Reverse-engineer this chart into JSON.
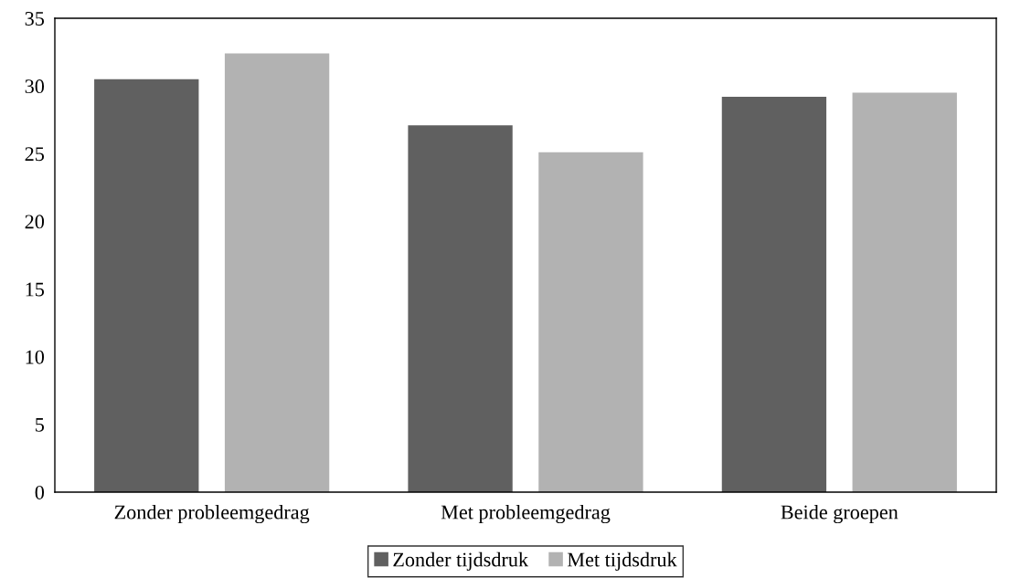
{
  "chart_data": {
    "type": "bar",
    "categories": [
      "Zonder probleemgedrag",
      "Met probleemgedrag",
      "Beide groepen"
    ],
    "series": [
      {
        "name": "Zonder tijdsdruk",
        "color": "#606060",
        "values": [
          30.5,
          27.1,
          29.2
        ]
      },
      {
        "name": "Met tijdsdruk",
        "color": "#b2b2b2",
        "values": [
          32.4,
          25.1,
          29.5
        ]
      }
    ],
    "ylim": [
      0,
      35
    ],
    "yticks": [
      0,
      5,
      10,
      15,
      20,
      25,
      30,
      35
    ],
    "grid": false,
    "legend": "bottom"
  }
}
